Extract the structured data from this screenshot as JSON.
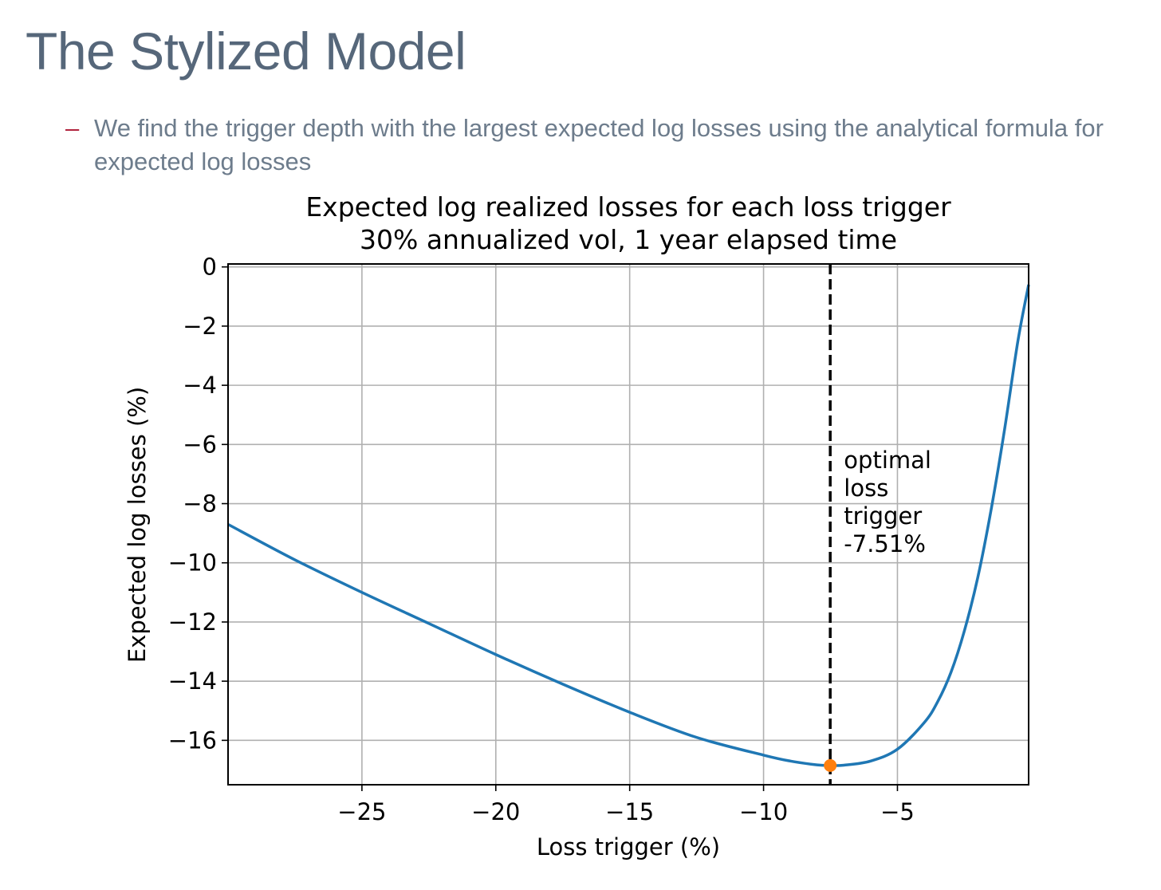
{
  "slide": {
    "title": "The Stylized Model",
    "bullet_marker": "–",
    "bullet_text": "We find the trigger depth with the largest expected log losses using the analytical formula for expected log losses"
  },
  "chart_data": {
    "type": "line",
    "title": "Expected log realized losses for each loss trigger",
    "subtitle": "30% annualized vol, 1 year elapsed time",
    "xlabel": "Loss trigger (%)",
    "ylabel": "Expected log losses (%)",
    "xlim": [
      -30,
      -0.1
    ],
    "ylim": [
      -17.5,
      0.1
    ],
    "xticks": [
      -25,
      -20,
      -15,
      -10,
      -5
    ],
    "xtick_labels": [
      "−25",
      "−20",
      "−15",
      "−10",
      "−5"
    ],
    "yticks": [
      0,
      -2,
      -4,
      -6,
      -8,
      -10,
      -12,
      -14,
      -16
    ],
    "ytick_labels": [
      "0",
      "−2",
      "−4",
      "−6",
      "−8",
      "−10",
      "−12",
      "−14",
      "−16"
    ],
    "grid": true,
    "series": [
      {
        "name": "expected log losses",
        "color": "#1f77b4",
        "x": [
          -30,
          -27.5,
          -25,
          -22.5,
          -20,
          -17.5,
          -15,
          -12.5,
          -10,
          -9,
          -8,
          -7.51,
          -7,
          -6,
          -5,
          -4,
          -3.5,
          -3,
          -2.5,
          -2,
          -1.5,
          -1,
          -0.5,
          -0.1
        ],
        "y": [
          -8.7,
          -9.9,
          -11.0,
          -12.05,
          -13.1,
          -14.1,
          -15.05,
          -15.9,
          -16.5,
          -16.7,
          -16.83,
          -16.85,
          -16.84,
          -16.7,
          -16.3,
          -15.4,
          -14.7,
          -13.7,
          -12.3,
          -10.5,
          -8.2,
          -5.5,
          -2.5,
          -0.6
        ]
      }
    ],
    "optimum": {
      "x": -7.51,
      "y": -16.85,
      "color": "#ff7f0e"
    },
    "vline": {
      "x": -7.51,
      "color": "#000000",
      "style": "dashed"
    },
    "annotation": {
      "lines": [
        "optimal",
        "loss",
        "trigger",
        "-7.51%"
      ],
      "x": -7.0,
      "y": -6.8
    }
  }
}
